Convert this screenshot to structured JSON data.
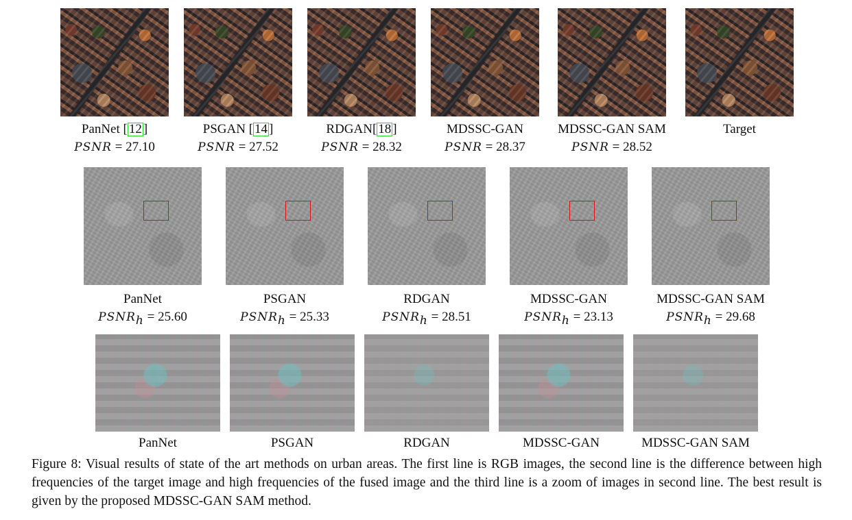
{
  "row1": [
    {
      "name": "PanNet ",
      "cite": "12",
      "metric_var": "PSNR",
      "metric_value": " = 27.10"
    },
    {
      "name": "PSGAN ",
      "cite": "14",
      "metric_var": "PSNR",
      "metric_value": " = 27.52"
    },
    {
      "name": "RDGAN",
      "cite": "18",
      "metric_var": "PSNR",
      "metric_value": " = 28.32"
    },
    {
      "name": "MDSSC-GAN",
      "cite": "",
      "metric_var": "PSNR",
      "metric_value": " = 28.37"
    },
    {
      "name": "MDSSC-GAN SAM",
      "cite": "",
      "metric_var": "PSNR",
      "metric_value": " = 28.52"
    },
    {
      "name": "Target",
      "cite": "",
      "metric_var": "",
      "metric_value": ""
    }
  ],
  "row2": [
    {
      "name": "PanNet",
      "metric_var": "PSNR",
      "metric_sub": "h",
      "metric_value": " = 25.60"
    },
    {
      "name": "PSGAN",
      "metric_var": "PSNR",
      "metric_sub": "h",
      "metric_value": " = 25.33"
    },
    {
      "name": "RDGAN",
      "metric_var": "PSNR",
      "metric_sub": "h",
      "metric_value": " = 28.51"
    },
    {
      "name": "MDSSC-GAN",
      "metric_var": "PSNR",
      "metric_sub": "h",
      "metric_value": " = 23.13"
    },
    {
      "name": "MDSSC-GAN SAM",
      "metric_var": "PSNR",
      "metric_sub": "h",
      "metric_value": " = 29.68"
    }
  ],
  "row3": [
    {
      "name": "PanNet"
    },
    {
      "name": "PSGAN"
    },
    {
      "name": "RDGAN"
    },
    {
      "name": "MDSSC-GAN"
    },
    {
      "name": "MDSSC-GAN SAM"
    }
  ],
  "caption": "Figure 8: Visual results of state of the art methods on urban areas. The first line is RGB images, the second line is the difference between high frequencies of the target image and high frequencies of the fused image and the third line is a zoom of images in second line. The best result is given by the proposed MDSSC-GAN SAM method."
}
